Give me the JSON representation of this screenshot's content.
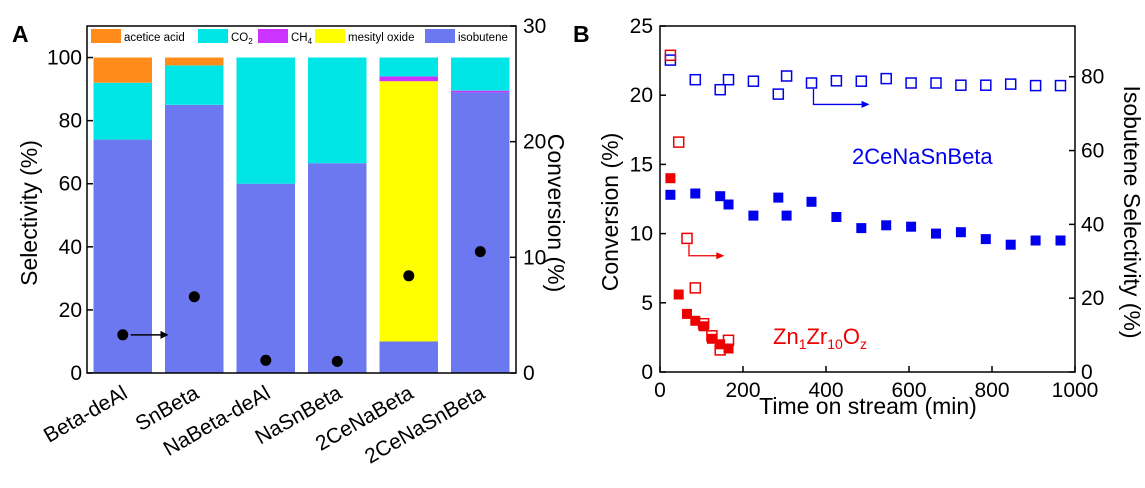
{
  "figure": {
    "panel_a_label": "A",
    "panel_b_label": "B"
  },
  "chart_data": [
    {
      "type": "bar",
      "stacked": true,
      "categories": [
        "Beta-deAl",
        "SnBeta",
        "NaBeta-deAl",
        "NaSnBeta",
        "2CeNaBeta",
        "2CeNaSnBeta"
      ],
      "series": [
        {
          "name": "isobutene",
          "color": "#6b78f0",
          "values": [
            74,
            85,
            60,
            66.5,
            10,
            89
          ]
        },
        {
          "name": "mesityl oxide",
          "color": "#ffff00",
          "values": [
            0,
            0,
            0,
            0,
            82.5,
            0
          ]
        },
        {
          "name": "CH4",
          "color": "#cc33ff",
          "values": [
            0,
            0,
            0,
            0,
            1.5,
            0.5
          ]
        },
        {
          "name": "CO2",
          "color": "#00e5e5",
          "values": [
            18,
            12.5,
            40,
            33.5,
            6,
            10.5
          ]
        },
        {
          "name": "acetice acid",
          "color": "#ff8c1a",
          "values": [
            8,
            2.5,
            0,
            0,
            0,
            0
          ]
        }
      ],
      "conversion": {
        "values": [
          3.3,
          6.6,
          1.1,
          1.0,
          8.4,
          10.5
        ],
        "marker": "filled-circle"
      },
      "legend_labels": [
        "acetice acid",
        "CO",
        "2",
        "CH",
        "4",
        "mesityl oxide",
        "isobutene"
      ],
      "ylabel": "Selectivity (%)",
      "ylim": [
        0,
        110
      ],
      "yticks": [
        "0",
        "20",
        "40",
        "60",
        "80",
        "100"
      ],
      "y2label": "Conversion (%)",
      "y2lim": [
        0,
        30
      ],
      "y2ticks": [
        "0",
        "10",
        "20",
        "30"
      ],
      "legend": "top"
    },
    {
      "type": "scatter",
      "xlabel": "Time on stream (min)",
      "xlim": [
        0,
        1000
      ],
      "xticks": [
        "0",
        "200",
        "400",
        "600",
        "800",
        "1000"
      ],
      "ylabel": "Conversion (%)",
      "ylim": [
        0,
        25
      ],
      "yticks": [
        "0",
        "5",
        "10",
        "15",
        "20",
        "25"
      ],
      "y2label": "Isobutene Selectivity (%)",
      "y2lim": [
        0,
        93.75
      ],
      "y2ticks": [
        "0",
        "20",
        "40",
        "60",
        "80"
      ],
      "series": [
        {
          "name": "2CeNaSnBeta",
          "axis": "left",
          "marker": "filled-square",
          "color": "#0000ee",
          "x": [
            25,
            85,
            145,
            165,
            225,
            285,
            305,
            365,
            425,
            485,
            545,
            605,
            665,
            725,
            785,
            845,
            905,
            965
          ],
          "y": [
            12.8,
            12.9,
            12.7,
            12.1,
            11.3,
            12.6,
            11.3,
            12.3,
            11.2,
            10.4,
            10.6,
            10.5,
            10.0,
            10.1,
            9.6,
            9.2,
            9.5,
            9.5
          ]
        },
        {
          "name": "2CeNaSnBeta",
          "axis": "right",
          "marker": "open-square",
          "color": "#0000ee",
          "x": [
            25,
            85,
            145,
            165,
            225,
            285,
            305,
            365,
            425,
            485,
            545,
            605,
            665,
            725,
            785,
            845,
            905,
            965
          ],
          "y": [
            84.5,
            79.2,
            76.5,
            79.2,
            78.8,
            75.3,
            80.2,
            78.3,
            78.9,
            78.8,
            79.5,
            78.3,
            78.3,
            77.7,
            77.7,
            78.0,
            77.6,
            77.6
          ]
        },
        {
          "name": "Zn1Zr10Oz",
          "axis": "left",
          "marker": "filled-square",
          "color": "#ee0000",
          "x": [
            25,
            45,
            65,
            85,
            105,
            125,
            145,
            165
          ],
          "y": [
            14.0,
            5.6,
            4.2,
            3.7,
            3.3,
            2.4,
            2.0,
            1.7
          ]
        },
        {
          "name": "Zn1Zr10Oz",
          "axis": "right",
          "marker": "open-square",
          "color": "#ee0000",
          "x": [
            25,
            45,
            65,
            85,
            105,
            125,
            145,
            165
          ],
          "y": [
            85.8,
            62.3,
            36.2,
            22.8,
            13.1,
            9.8,
            6.0,
            8.6
          ]
        }
      ],
      "annotations": {
        "ce_label": "2CeNaSnBeta",
        "zn_label_main": "Zn",
        "zn_sub1": "1",
        "zn_label_mid": "Zr",
        "zn_sub2": "10",
        "zn_label_end": "O",
        "zn_sub3": "z"
      }
    }
  ]
}
